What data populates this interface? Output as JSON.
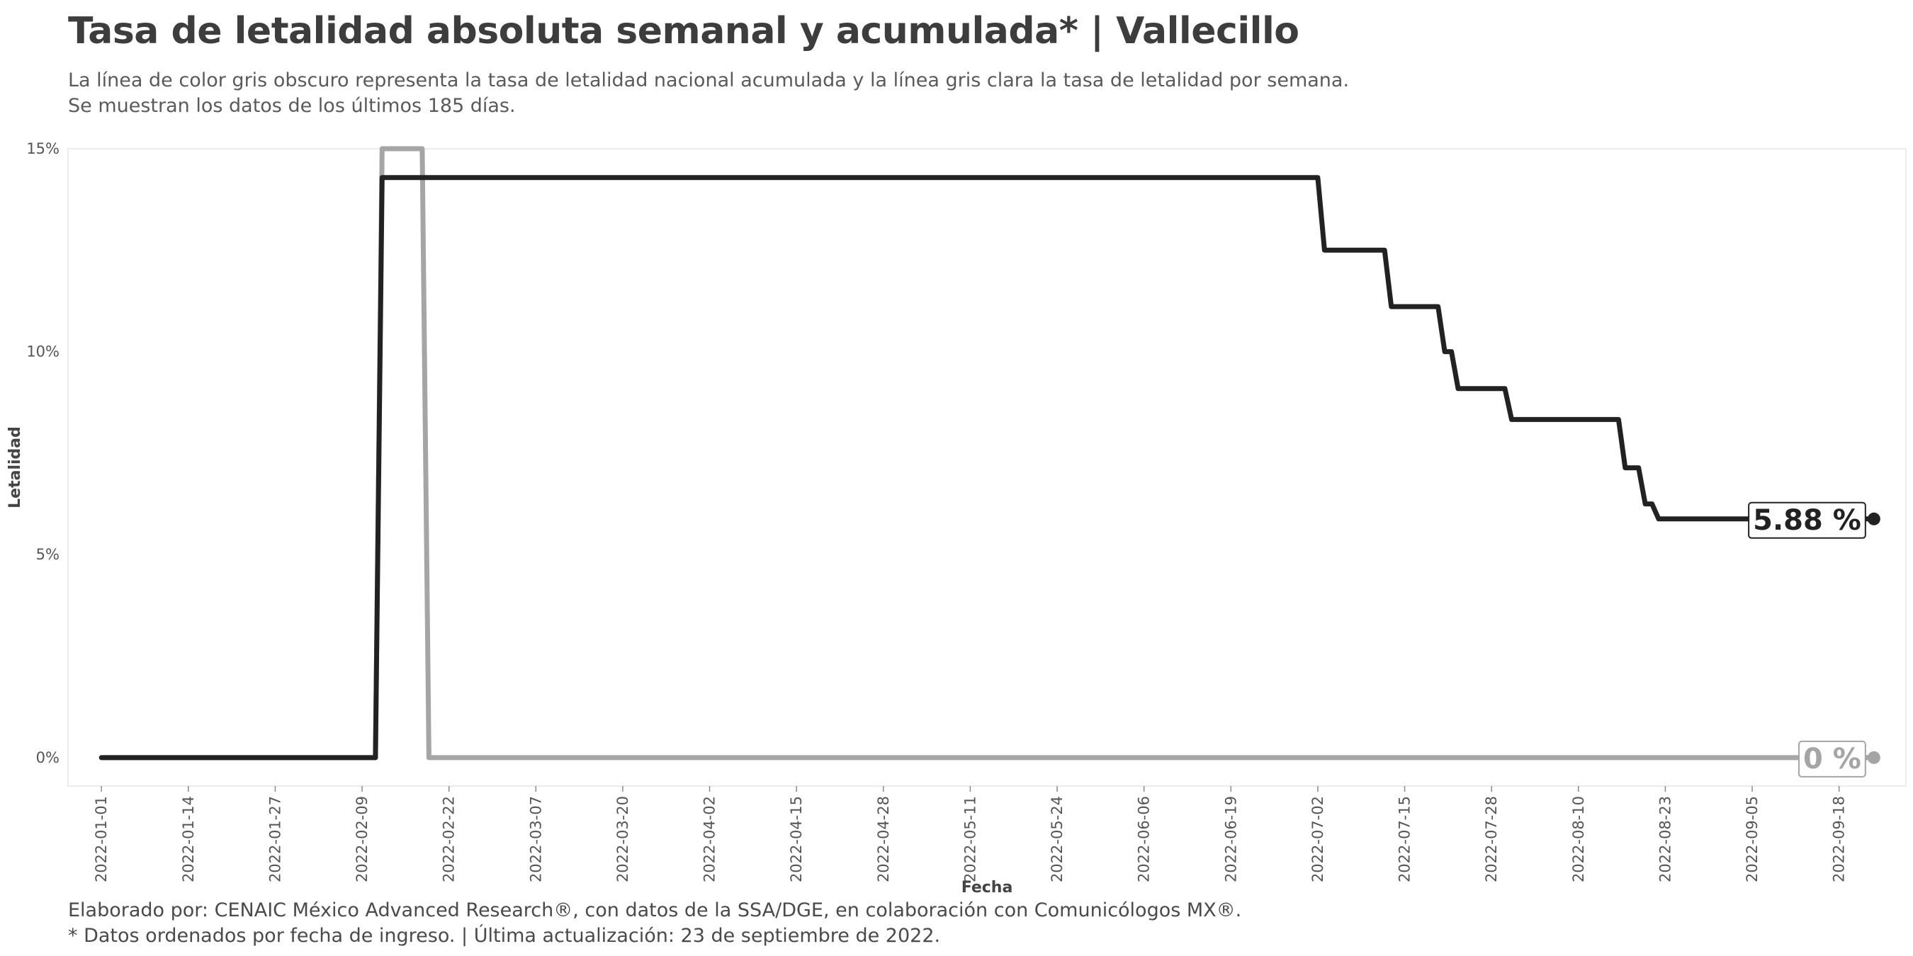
{
  "title": "Tasa de letalidad absoluta semanal y acumulada* | Vallecillo",
  "subtitle": [
    "La línea de color gris obscuro representa la tasa de letalidad nacional acumulada y la línea gris clara la tasa de letalidad por semana.",
    "Se muestran los datos de los últimos 185 días."
  ],
  "caption": [
    "Elaborado por: CENAIC México Advanced Research®, con datos de la SSA/DGE, en colaboración con Comunicólogos MX®.",
    "* Datos ordenados por fecha de ingreso. | Última actualización: 23 de septiembre de 2022."
  ],
  "chart_data": {
    "type": "line",
    "xlabel": "Fecha",
    "ylabel": "Letalidad",
    "x_range": [
      "2021-12-27",
      "2022-09-28"
    ],
    "ylim": [
      -0.7,
      15
    ],
    "y_ticks": [
      0,
      5,
      10,
      15
    ],
    "y_tick_labels": [
      "0%",
      "5%",
      "10%",
      "15%"
    ],
    "x_ticks": [
      "2022-01-01",
      "2022-01-14",
      "2022-01-27",
      "2022-02-09",
      "2022-02-22",
      "2022-03-07",
      "2022-03-20",
      "2022-04-02",
      "2022-04-15",
      "2022-04-28",
      "2022-05-11",
      "2022-05-24",
      "2022-06-06",
      "2022-06-19",
      "2022-07-02",
      "2022-07-15",
      "2022-07-28",
      "2022-08-10",
      "2022-08-23",
      "2022-09-05",
      "2022-09-18"
    ],
    "grid": false,
    "series": [
      {
        "color": "#a5a5a5",
        "end_label": "0 %",
        "points": [
          [
            "2022-01-01",
            0
          ],
          [
            "2022-02-11",
            0
          ],
          [
            "2022-02-12",
            15
          ],
          [
            "2022-02-18",
            15
          ],
          [
            "2022-02-19",
            0
          ],
          [
            "2022-09-23",
            0
          ]
        ]
      },
      {
        "color": "#222222",
        "end_label": "5.88 %",
        "points": [
          [
            "2022-01-01",
            0
          ],
          [
            "2022-02-11",
            0
          ],
          [
            "2022-02-12",
            14.29
          ],
          [
            "2022-07-02",
            14.29
          ],
          [
            "2022-07-03",
            12.5
          ],
          [
            "2022-07-12",
            12.5
          ],
          [
            "2022-07-13",
            11.11
          ],
          [
            "2022-07-20",
            11.11
          ],
          [
            "2022-07-21",
            10.0
          ],
          [
            "2022-07-22",
            10.0
          ],
          [
            "2022-07-23",
            9.09
          ],
          [
            "2022-07-30",
            9.09
          ],
          [
            "2022-07-31",
            8.33
          ],
          [
            "2022-08-16",
            8.33
          ],
          [
            "2022-08-17",
            7.14
          ],
          [
            "2022-08-19",
            7.14
          ],
          [
            "2022-08-20",
            6.25
          ],
          [
            "2022-08-21",
            6.25
          ],
          [
            "2022-08-22",
            5.88
          ],
          [
            "2022-09-23",
            5.88
          ]
        ]
      }
    ]
  }
}
